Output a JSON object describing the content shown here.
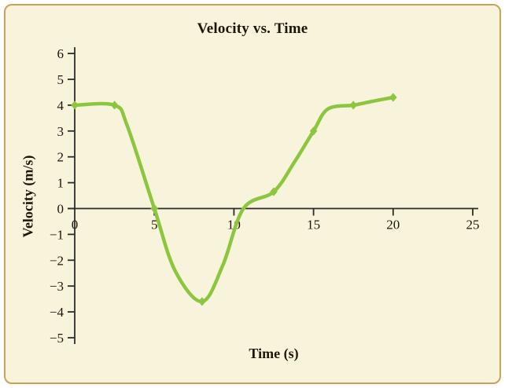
{
  "frame": {
    "background": "#ffffff",
    "panel_background": "#f8f4dc",
    "border_color": "#c9a257"
  },
  "chart_data": {
    "type": "line",
    "title": "Velocity vs. Time",
    "xlabel": "Time (s)",
    "ylabel": "Velocity (m/s)",
    "xlim": [
      0,
      25
    ],
    "ylim": [
      -5,
      6
    ],
    "xticks": [
      0,
      5,
      10,
      15,
      20,
      25
    ],
    "yticks": [
      -5,
      -4,
      -3,
      -2,
      -1,
      0,
      1,
      2,
      3,
      4,
      5,
      6
    ],
    "grid": false,
    "legend": null,
    "axis_color": "#2b2b2b",
    "series": [
      {
        "name": "velocity",
        "color": "#8cc63e",
        "marker": "diamond",
        "points": [
          [
            0,
            4
          ],
          [
            2.5,
            4
          ],
          [
            5,
            0
          ],
          [
            8,
            -3.6
          ],
          [
            12.5,
            0.65
          ],
          [
            15,
            3
          ],
          [
            17.5,
            4
          ],
          [
            20,
            4.3
          ]
        ],
        "curve": [
          [
            0,
            4
          ],
          [
            2.5,
            4
          ],
          [
            3.3,
            3.2
          ],
          [
            5,
            0
          ],
          [
            6.3,
            -2.4
          ],
          [
            8,
            -3.6
          ],
          [
            9.3,
            -2.2
          ],
          [
            10.6,
            0
          ],
          [
            12.5,
            0.65
          ],
          [
            13.8,
            1.8
          ],
          [
            15,
            3
          ],
          [
            15.9,
            3.85
          ],
          [
            17.5,
            4
          ],
          [
            18.7,
            4.15
          ],
          [
            20,
            4.3
          ]
        ]
      }
    ]
  }
}
